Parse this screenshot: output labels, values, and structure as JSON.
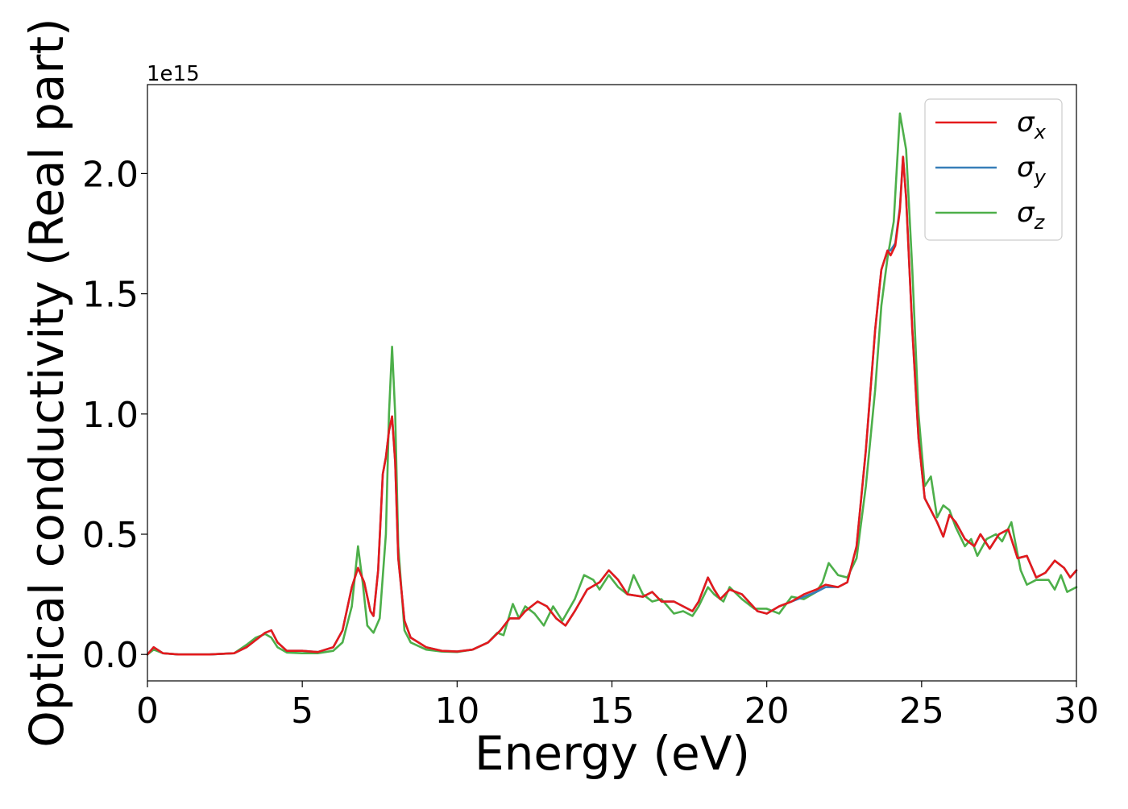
{
  "chart_data": {
    "type": "line",
    "title": "",
    "xlabel": "Energy (eV)",
    "ylabel": "Optical conductivity (Real part)",
    "offset_text": "1e15",
    "xlim": [
      0,
      30
    ],
    "ylim": [
      -0.11,
      2.37
    ],
    "y_scale_factor": 1000000000000000.0,
    "grid": false,
    "legend_position": "top-right",
    "x_ticks": [
      0,
      5,
      10,
      15,
      20,
      25,
      30
    ],
    "x_tick_labels": [
      "0",
      "5",
      "10",
      "15",
      "20",
      "25",
      "30"
    ],
    "y_ticks": [
      0.0,
      0.5,
      1.0,
      1.5,
      2.0
    ],
    "y_tick_labels": [
      "0.0",
      "0.5",
      "1.0",
      "1.5",
      "2.0"
    ],
    "series": [
      {
        "name": "σx",
        "name_base": "σ",
        "name_sub": "x",
        "color": "#e41a1c",
        "points": [
          [
            0,
            0.0
          ],
          [
            0.2,
            0.03
          ],
          [
            0.5,
            0.005
          ],
          [
            1,
            0.0
          ],
          [
            2,
            0.0
          ],
          [
            2.8,
            0.005
          ],
          [
            3.2,
            0.03
          ],
          [
            3.5,
            0.06
          ],
          [
            3.8,
            0.09
          ],
          [
            4.0,
            0.1
          ],
          [
            4.2,
            0.05
          ],
          [
            4.5,
            0.015
          ],
          [
            5,
            0.015
          ],
          [
            5.5,
            0.01
          ],
          [
            6,
            0.03
          ],
          [
            6.3,
            0.1
          ],
          [
            6.6,
            0.28
          ],
          [
            6.8,
            0.36
          ],
          [
            7.0,
            0.3
          ],
          [
            7.2,
            0.18
          ],
          [
            7.3,
            0.16
          ],
          [
            7.45,
            0.35
          ],
          [
            7.6,
            0.75
          ],
          [
            7.7,
            0.82
          ],
          [
            7.8,
            0.93
          ],
          [
            7.9,
            0.99
          ],
          [
            8.0,
            0.8
          ],
          [
            8.1,
            0.4
          ],
          [
            8.3,
            0.14
          ],
          [
            8.5,
            0.07
          ],
          [
            9,
            0.03
          ],
          [
            9.5,
            0.015
          ],
          [
            10,
            0.012
          ],
          [
            10.5,
            0.02
          ],
          [
            11,
            0.05
          ],
          [
            11.4,
            0.1
          ],
          [
            11.7,
            0.15
          ],
          [
            12.0,
            0.15
          ],
          [
            12.2,
            0.18
          ],
          [
            12.6,
            0.22
          ],
          [
            12.9,
            0.2
          ],
          [
            13.2,
            0.15
          ],
          [
            13.5,
            0.12
          ],
          [
            13.8,
            0.18
          ],
          [
            14.2,
            0.27
          ],
          [
            14.6,
            0.3
          ],
          [
            14.9,
            0.35
          ],
          [
            15.2,
            0.31
          ],
          [
            15.5,
            0.25
          ],
          [
            16.0,
            0.24
          ],
          [
            16.3,
            0.26
          ],
          [
            16.6,
            0.22
          ],
          [
            17.0,
            0.22
          ],
          [
            17.3,
            0.2
          ],
          [
            17.6,
            0.18
          ],
          [
            17.8,
            0.22
          ],
          [
            18.1,
            0.32
          ],
          [
            18.3,
            0.27
          ],
          [
            18.5,
            0.23
          ],
          [
            18.8,
            0.27
          ],
          [
            19.2,
            0.25
          ],
          [
            19.7,
            0.18
          ],
          [
            20.0,
            0.17
          ],
          [
            20.4,
            0.2
          ],
          [
            20.8,
            0.22
          ],
          [
            21.2,
            0.25
          ],
          [
            21.6,
            0.27
          ],
          [
            21.9,
            0.29
          ],
          [
            22.3,
            0.28
          ],
          [
            22.6,
            0.3
          ],
          [
            22.9,
            0.45
          ],
          [
            23.2,
            0.85
          ],
          [
            23.5,
            1.35
          ],
          [
            23.7,
            1.6
          ],
          [
            23.9,
            1.68
          ],
          [
            24.0,
            1.66
          ],
          [
            24.15,
            1.7
          ],
          [
            24.3,
            1.85
          ],
          [
            24.4,
            2.07
          ],
          [
            24.5,
            1.9
          ],
          [
            24.7,
            1.35
          ],
          [
            24.9,
            0.9
          ],
          [
            25.1,
            0.65
          ],
          [
            25.3,
            0.6
          ],
          [
            25.5,
            0.55
          ],
          [
            25.7,
            0.49
          ],
          [
            25.9,
            0.58
          ],
          [
            26.1,
            0.55
          ],
          [
            26.4,
            0.48
          ],
          [
            26.7,
            0.45
          ],
          [
            26.9,
            0.5
          ],
          [
            27.2,
            0.44
          ],
          [
            27.5,
            0.5
          ],
          [
            27.8,
            0.52
          ],
          [
            28.1,
            0.4
          ],
          [
            28.4,
            0.41
          ],
          [
            28.7,
            0.32
          ],
          [
            29.0,
            0.34
          ],
          [
            29.3,
            0.39
          ],
          [
            29.6,
            0.36
          ],
          [
            29.8,
            0.32
          ],
          [
            30,
            0.35
          ]
        ]
      },
      {
        "name": "σy",
        "name_base": "σ",
        "name_sub": "y",
        "color": "#377eb8",
        "points": [
          [
            0,
            0.0
          ],
          [
            0.2,
            0.03
          ],
          [
            0.5,
            0.005
          ],
          [
            1,
            0.0
          ],
          [
            2,
            0.0
          ],
          [
            2.8,
            0.005
          ],
          [
            3.2,
            0.03
          ],
          [
            3.5,
            0.06
          ],
          [
            3.8,
            0.09
          ],
          [
            4.0,
            0.1
          ],
          [
            4.2,
            0.05
          ],
          [
            4.5,
            0.015
          ],
          [
            5,
            0.015
          ],
          [
            5.5,
            0.01
          ],
          [
            6,
            0.03
          ],
          [
            6.3,
            0.1
          ],
          [
            6.6,
            0.28
          ],
          [
            6.8,
            0.36
          ],
          [
            7.0,
            0.3
          ],
          [
            7.2,
            0.18
          ],
          [
            7.3,
            0.16
          ],
          [
            7.45,
            0.35
          ],
          [
            7.6,
            0.75
          ],
          [
            7.7,
            0.82
          ],
          [
            7.8,
            0.93
          ],
          [
            7.9,
            0.99
          ],
          [
            8.0,
            0.8
          ],
          [
            8.1,
            0.4
          ],
          [
            8.3,
            0.14
          ],
          [
            8.5,
            0.07
          ],
          [
            9,
            0.03
          ],
          [
            9.5,
            0.015
          ],
          [
            10,
            0.012
          ],
          [
            10.5,
            0.02
          ],
          [
            11,
            0.05
          ],
          [
            11.4,
            0.1
          ],
          [
            11.7,
            0.15
          ],
          [
            12.0,
            0.15
          ],
          [
            12.2,
            0.18
          ],
          [
            12.6,
            0.22
          ],
          [
            12.9,
            0.2
          ],
          [
            13.2,
            0.15
          ],
          [
            13.5,
            0.12
          ],
          [
            13.8,
            0.18
          ],
          [
            14.2,
            0.27
          ],
          [
            14.6,
            0.3
          ],
          [
            14.9,
            0.35
          ],
          [
            15.2,
            0.31
          ],
          [
            15.5,
            0.25
          ],
          [
            16.0,
            0.24
          ],
          [
            16.3,
            0.26
          ],
          [
            16.6,
            0.22
          ],
          [
            17.0,
            0.22
          ],
          [
            17.3,
            0.2
          ],
          [
            17.6,
            0.18
          ],
          [
            17.8,
            0.22
          ],
          [
            18.1,
            0.32
          ],
          [
            18.3,
            0.27
          ],
          [
            18.5,
            0.23
          ],
          [
            18.8,
            0.27
          ],
          [
            19.2,
            0.25
          ],
          [
            19.7,
            0.18
          ],
          [
            20.0,
            0.17
          ],
          [
            20.4,
            0.2
          ],
          [
            20.8,
            0.22
          ],
          [
            21.2,
            0.24
          ],
          [
            21.6,
            0.26
          ],
          [
            21.9,
            0.28
          ],
          [
            22.3,
            0.28
          ],
          [
            22.6,
            0.3
          ],
          [
            22.9,
            0.45
          ],
          [
            23.2,
            0.85
          ],
          [
            23.5,
            1.35
          ],
          [
            23.7,
            1.6
          ],
          [
            23.9,
            1.68
          ],
          [
            24.0,
            1.68
          ],
          [
            24.15,
            1.71
          ],
          [
            24.3,
            1.86
          ],
          [
            24.4,
            2.07
          ],
          [
            24.5,
            1.9
          ],
          [
            24.7,
            1.35
          ],
          [
            24.9,
            0.9
          ],
          [
            25.1,
            0.65
          ],
          [
            25.3,
            0.6
          ],
          [
            25.5,
            0.55
          ],
          [
            25.7,
            0.49
          ],
          [
            25.9,
            0.58
          ],
          [
            26.1,
            0.55
          ],
          [
            26.4,
            0.48
          ],
          [
            26.7,
            0.45
          ],
          [
            26.9,
            0.5
          ],
          [
            27.2,
            0.44
          ],
          [
            27.5,
            0.5
          ],
          [
            27.8,
            0.52
          ],
          [
            28.1,
            0.4
          ],
          [
            28.4,
            0.41
          ],
          [
            28.7,
            0.32
          ],
          [
            29.0,
            0.34
          ],
          [
            29.3,
            0.39
          ],
          [
            29.6,
            0.36
          ],
          [
            29.8,
            0.32
          ],
          [
            30,
            0.35
          ]
        ]
      },
      {
        "name": "σz",
        "name_base": "σ",
        "name_sub": "z",
        "color": "#4daf4a",
        "points": [
          [
            0,
            0.0
          ],
          [
            0.2,
            0.02
          ],
          [
            0.5,
            0.005
          ],
          [
            1,
            0.0
          ],
          [
            2,
            0.0
          ],
          [
            2.8,
            0.005
          ],
          [
            3.2,
            0.04
          ],
          [
            3.5,
            0.07
          ],
          [
            3.8,
            0.085
          ],
          [
            4.0,
            0.07
          ],
          [
            4.2,
            0.03
          ],
          [
            4.5,
            0.008
          ],
          [
            5,
            0.005
          ],
          [
            5.5,
            0.005
          ],
          [
            6,
            0.015
          ],
          [
            6.3,
            0.05
          ],
          [
            6.6,
            0.2
          ],
          [
            6.8,
            0.45
          ],
          [
            6.95,
            0.3
          ],
          [
            7.1,
            0.12
          ],
          [
            7.3,
            0.09
          ],
          [
            7.5,
            0.15
          ],
          [
            7.7,
            0.5
          ],
          [
            7.8,
            1.0
          ],
          [
            7.9,
            1.28
          ],
          [
            8.0,
            1.0
          ],
          [
            8.1,
            0.45
          ],
          [
            8.3,
            0.1
          ],
          [
            8.5,
            0.05
          ],
          [
            9,
            0.02
          ],
          [
            9.5,
            0.012
          ],
          [
            10,
            0.01
          ],
          [
            10.5,
            0.02
          ],
          [
            11,
            0.05
          ],
          [
            11.3,
            0.09
          ],
          [
            11.5,
            0.08
          ],
          [
            11.8,
            0.21
          ],
          [
            12.0,
            0.15
          ],
          [
            12.2,
            0.2
          ],
          [
            12.5,
            0.17
          ],
          [
            12.8,
            0.12
          ],
          [
            13.1,
            0.2
          ],
          [
            13.4,
            0.14
          ],
          [
            13.8,
            0.23
          ],
          [
            14.1,
            0.33
          ],
          [
            14.4,
            0.31
          ],
          [
            14.6,
            0.27
          ],
          [
            14.9,
            0.33
          ],
          [
            15.2,
            0.28
          ],
          [
            15.5,
            0.25
          ],
          [
            15.7,
            0.33
          ],
          [
            16.0,
            0.25
          ],
          [
            16.3,
            0.22
          ],
          [
            16.6,
            0.23
          ],
          [
            17.0,
            0.17
          ],
          [
            17.3,
            0.18
          ],
          [
            17.6,
            0.16
          ],
          [
            17.8,
            0.2
          ],
          [
            18.1,
            0.28
          ],
          [
            18.3,
            0.25
          ],
          [
            18.6,
            0.22
          ],
          [
            18.8,
            0.28
          ],
          [
            19.2,
            0.23
          ],
          [
            19.6,
            0.19
          ],
          [
            20.0,
            0.19
          ],
          [
            20.4,
            0.17
          ],
          [
            20.8,
            0.24
          ],
          [
            21.2,
            0.23
          ],
          [
            21.6,
            0.26
          ],
          [
            21.8,
            0.3
          ],
          [
            22.0,
            0.38
          ],
          [
            22.3,
            0.33
          ],
          [
            22.6,
            0.32
          ],
          [
            22.9,
            0.4
          ],
          [
            23.2,
            0.7
          ],
          [
            23.5,
            1.1
          ],
          [
            23.7,
            1.45
          ],
          [
            23.9,
            1.65
          ],
          [
            24.1,
            1.8
          ],
          [
            24.3,
            2.25
          ],
          [
            24.5,
            2.1
          ],
          [
            24.7,
            1.6
          ],
          [
            24.9,
            1.0
          ],
          [
            25.1,
            0.7
          ],
          [
            25.3,
            0.74
          ],
          [
            25.5,
            0.57
          ],
          [
            25.7,
            0.62
          ],
          [
            25.9,
            0.6
          ],
          [
            26.1,
            0.53
          ],
          [
            26.4,
            0.45
          ],
          [
            26.6,
            0.48
          ],
          [
            26.8,
            0.41
          ],
          [
            27.1,
            0.48
          ],
          [
            27.4,
            0.5
          ],
          [
            27.6,
            0.47
          ],
          [
            27.9,
            0.55
          ],
          [
            28.2,
            0.35
          ],
          [
            28.4,
            0.29
          ],
          [
            28.7,
            0.31
          ],
          [
            29.1,
            0.31
          ],
          [
            29.3,
            0.27
          ],
          [
            29.5,
            0.33
          ],
          [
            29.7,
            0.26
          ],
          [
            30,
            0.28
          ]
        ]
      }
    ]
  }
}
